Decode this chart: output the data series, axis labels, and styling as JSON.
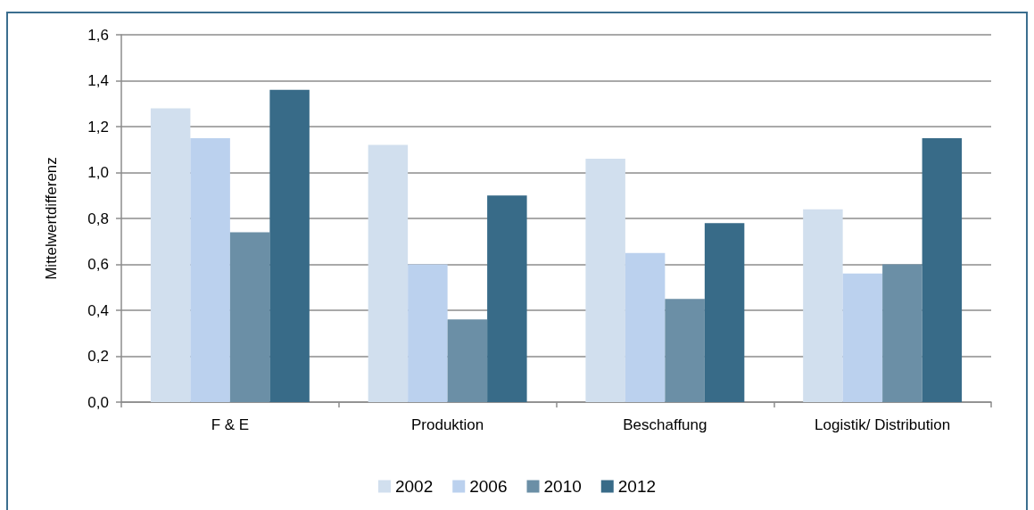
{
  "chart_data": {
    "type": "bar",
    "ylabel": "Mittelwertdifferenz",
    "categories": [
      "F & E",
      "Produktion",
      "Beschaffung",
      "Logistik/ Distribution"
    ],
    "series": [
      {
        "name": "2002",
        "color": "#d1dfee",
        "values": [
          1.28,
          1.12,
          1.06,
          0.84
        ]
      },
      {
        "name": "2006",
        "color": "#bbd1ee",
        "values": [
          1.15,
          0.6,
          0.65,
          0.56
        ]
      },
      {
        "name": "2010",
        "color": "#6b8fa6",
        "values": [
          0.74,
          0.36,
          0.45,
          0.6
        ]
      },
      {
        "name": "2012",
        "color": "#386b88",
        "values": [
          1.36,
          0.9,
          0.78,
          1.15
        ]
      }
    ],
    "ylim": [
      0,
      1.6
    ],
    "yticks": [
      {
        "value": 0,
        "label": "0,0"
      },
      {
        "value": 0.2,
        "label": "0,2"
      },
      {
        "value": 0.4,
        "label": "0,4"
      },
      {
        "value": 0.6,
        "label": "0,6"
      },
      {
        "value": 0.8,
        "label": "0,8"
      },
      {
        "value": 1.0,
        "label": "1,0"
      },
      {
        "value": 1.2,
        "label": "1,2"
      },
      {
        "value": 1.4,
        "label": "1,4"
      },
      {
        "value": 1.6,
        "label": "1,6"
      }
    ],
    "grid": "y",
    "legend": "bottom"
  }
}
